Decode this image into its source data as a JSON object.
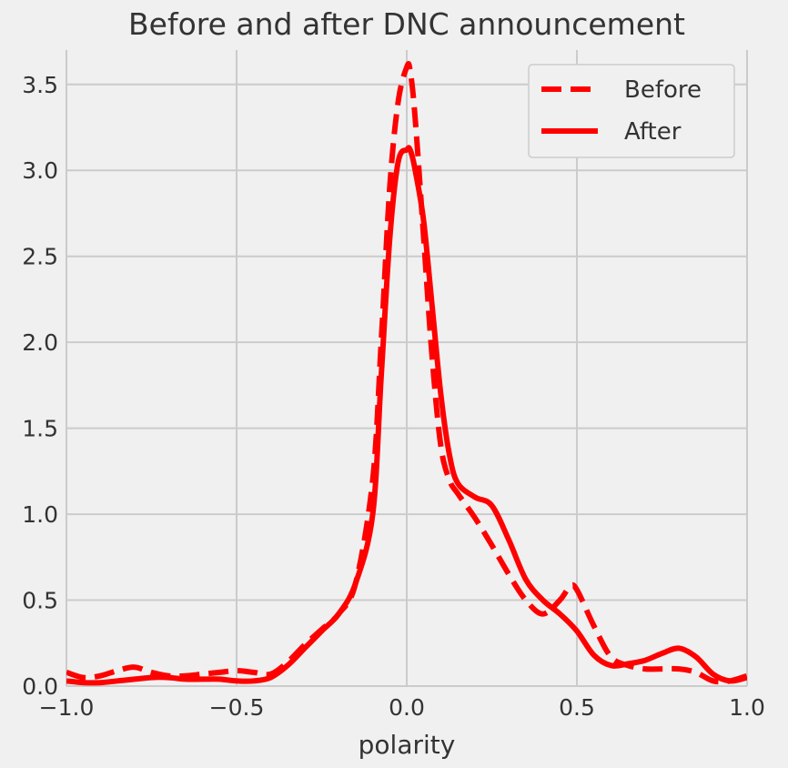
{
  "chart_data": {
    "type": "line",
    "title": "Before and after DNC announcement",
    "xlabel": "polarity",
    "ylabel": "",
    "xlim": [
      -1.0,
      1.0
    ],
    "ylim": [
      0.0,
      3.7
    ],
    "x_ticks": [
      -1.0,
      -0.5,
      0.0,
      0.5,
      1.0
    ],
    "x_tick_labels": [
      "−1.0",
      "−0.5",
      "0.0",
      "0.5",
      "1.0"
    ],
    "y_ticks": [
      0.0,
      0.5,
      1.0,
      1.5,
      2.0,
      2.5,
      3.0,
      3.5
    ],
    "y_tick_labels": [
      "0.0",
      "0.5",
      "1.0",
      "1.5",
      "2.0",
      "2.5",
      "3.0",
      "3.5"
    ],
    "grid": true,
    "legend_position": "top-right",
    "series": [
      {
        "name": "Before",
        "style": "dashed",
        "color": "#ff0000",
        "x": [
          -1.0,
          -0.95,
          -0.9,
          -0.85,
          -0.8,
          -0.75,
          -0.7,
          -0.65,
          -0.6,
          -0.55,
          -0.5,
          -0.45,
          -0.4,
          -0.35,
          -0.3,
          -0.25,
          -0.2,
          -0.15,
          -0.1,
          -0.075,
          -0.05,
          -0.025,
          0.0,
          0.01,
          0.025,
          0.05,
          0.075,
          0.1,
          0.125,
          0.15,
          0.2,
          0.25,
          0.3,
          0.35,
          0.4,
          0.45,
          0.48,
          0.5,
          0.55,
          0.6,
          0.65,
          0.7,
          0.75,
          0.8,
          0.85,
          0.9,
          0.95,
          1.0
        ],
        "y": [
          0.08,
          0.05,
          0.06,
          0.09,
          0.11,
          0.08,
          0.06,
          0.06,
          0.07,
          0.08,
          0.09,
          0.08,
          0.07,
          0.14,
          0.24,
          0.33,
          0.42,
          0.6,
          1.2,
          2.0,
          2.9,
          3.4,
          3.6,
          3.58,
          3.3,
          2.6,
          1.9,
          1.4,
          1.2,
          1.12,
          0.98,
          0.82,
          0.65,
          0.5,
          0.42,
          0.5,
          0.58,
          0.56,
          0.35,
          0.17,
          0.12,
          0.1,
          0.1,
          0.1,
          0.08,
          0.03,
          0.03,
          0.06
        ]
      },
      {
        "name": "After",
        "style": "solid",
        "color": "#ff0000",
        "x": [
          -1.0,
          -0.95,
          -0.9,
          -0.85,
          -0.8,
          -0.75,
          -0.7,
          -0.65,
          -0.6,
          -0.55,
          -0.5,
          -0.45,
          -0.4,
          -0.35,
          -0.3,
          -0.25,
          -0.2,
          -0.15,
          -0.1,
          -0.075,
          -0.05,
          -0.025,
          0.0,
          0.01,
          0.025,
          0.05,
          0.075,
          0.1,
          0.125,
          0.15,
          0.2,
          0.25,
          0.3,
          0.35,
          0.4,
          0.45,
          0.5,
          0.55,
          0.6,
          0.65,
          0.7,
          0.75,
          0.8,
          0.85,
          0.9,
          0.95,
          1.0
        ],
        "y": [
          0.03,
          0.02,
          0.02,
          0.03,
          0.04,
          0.05,
          0.05,
          0.04,
          0.04,
          0.04,
          0.03,
          0.03,
          0.05,
          0.12,
          0.22,
          0.32,
          0.42,
          0.6,
          1.0,
          1.8,
          2.6,
          3.05,
          3.12,
          3.12,
          3.0,
          2.7,
          2.2,
          1.7,
          1.35,
          1.18,
          1.1,
          1.05,
          0.85,
          0.62,
          0.5,
          0.42,
          0.32,
          0.18,
          0.12,
          0.13,
          0.15,
          0.19,
          0.22,
          0.17,
          0.07,
          0.03,
          0.05
        ]
      }
    ]
  },
  "colors": {
    "background": "#f0f0f0",
    "grid": "#cbcbcb",
    "text": "#333333",
    "series": "#ff0000"
  }
}
